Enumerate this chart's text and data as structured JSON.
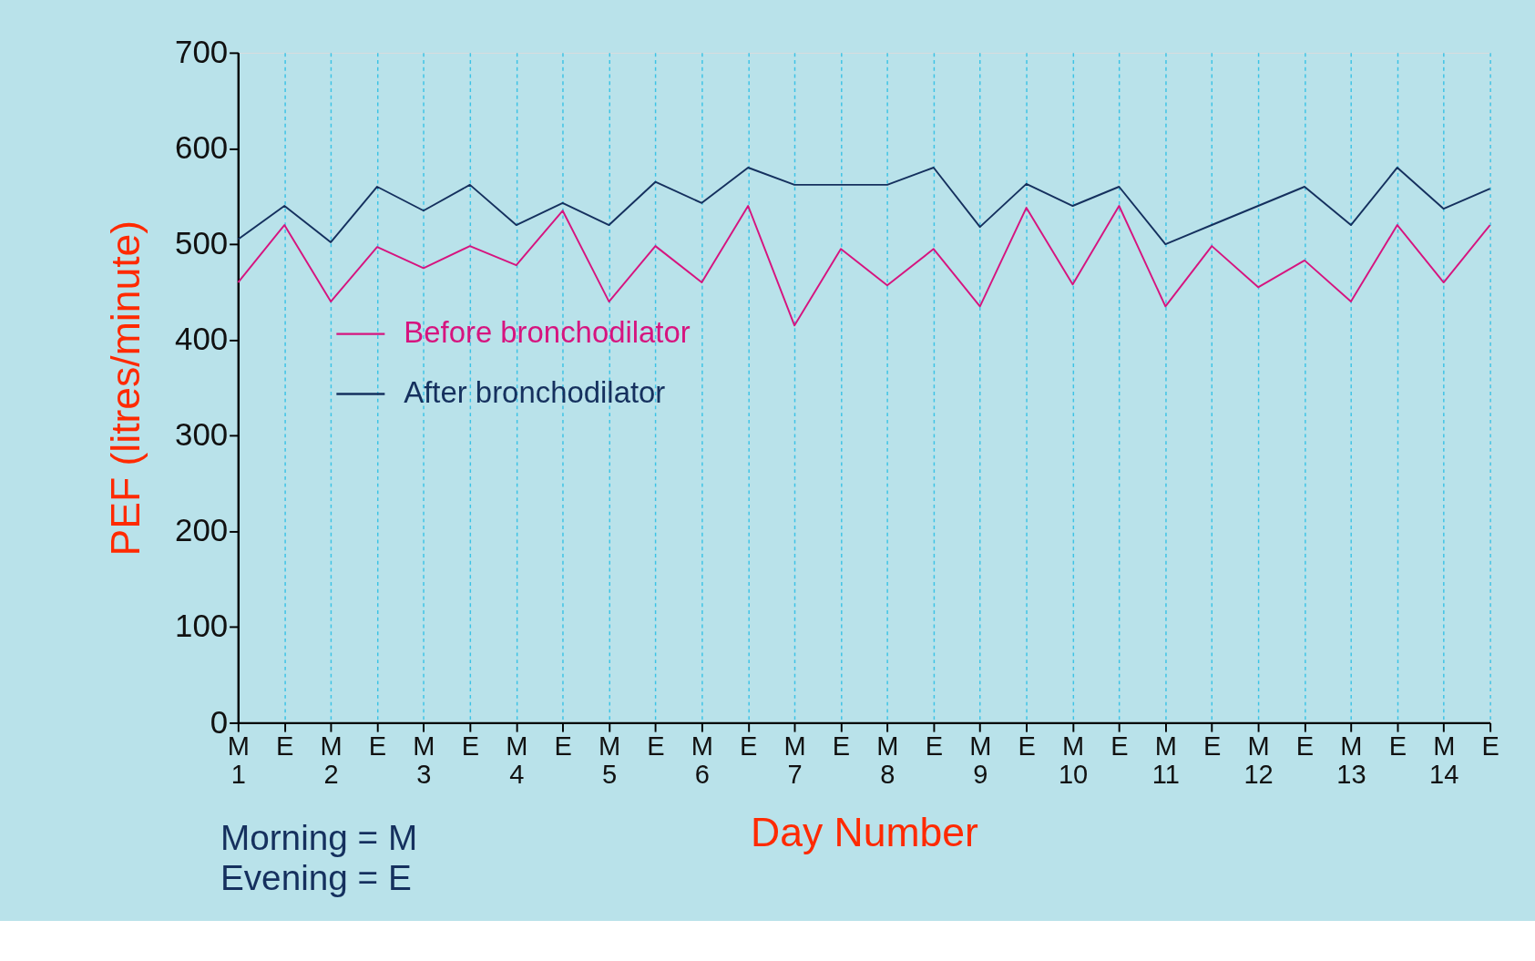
{
  "chart_data": {
    "type": "line",
    "xlabel": "Day Number",
    "ylabel": "PEF (litres/minute)",
    "categories": [
      "M\n1",
      "E",
      "M\n2",
      "E",
      "M\n3",
      "E",
      "M\n4",
      "E",
      "M\n5",
      "E",
      "M\n6",
      "E",
      "M\n7",
      "E",
      "M\n8",
      "E",
      "M\n9",
      "E",
      "M\n10",
      "E",
      "M\n11",
      "E",
      "M\n12",
      "E",
      "M\n13",
      "E",
      "M\n14",
      "E"
    ],
    "series": [
      {
        "name": "Before bronchodilator",
        "color": "#d6147f",
        "values": [
          460,
          520,
          440,
          497,
          475,
          498,
          478,
          535,
          440,
          498,
          460,
          540,
          415,
          495,
          457,
          495,
          435,
          538,
          458,
          540,
          435,
          498,
          455,
          483,
          440,
          520,
          460,
          520
        ]
      },
      {
        "name": "After bronchodilator",
        "color": "#15305e",
        "values": [
          505,
          540,
          502,
          560,
          535,
          562,
          520,
          543,
          520,
          565,
          543,
          580,
          562,
          562,
          562,
          580,
          518,
          563,
          540,
          560,
          500,
          520,
          540,
          560,
          520,
          580,
          537,
          558
        ]
      }
    ],
    "ylim": [
      0,
      700
    ],
    "yticks": [
      0,
      100,
      200,
      300,
      400,
      500,
      600,
      700
    ],
    "grid": "x",
    "legend": "left",
    "marker": "none",
    "line_style": "solid",
    "annotations": [
      "Morning = M",
      "Evening = E"
    ]
  }
}
